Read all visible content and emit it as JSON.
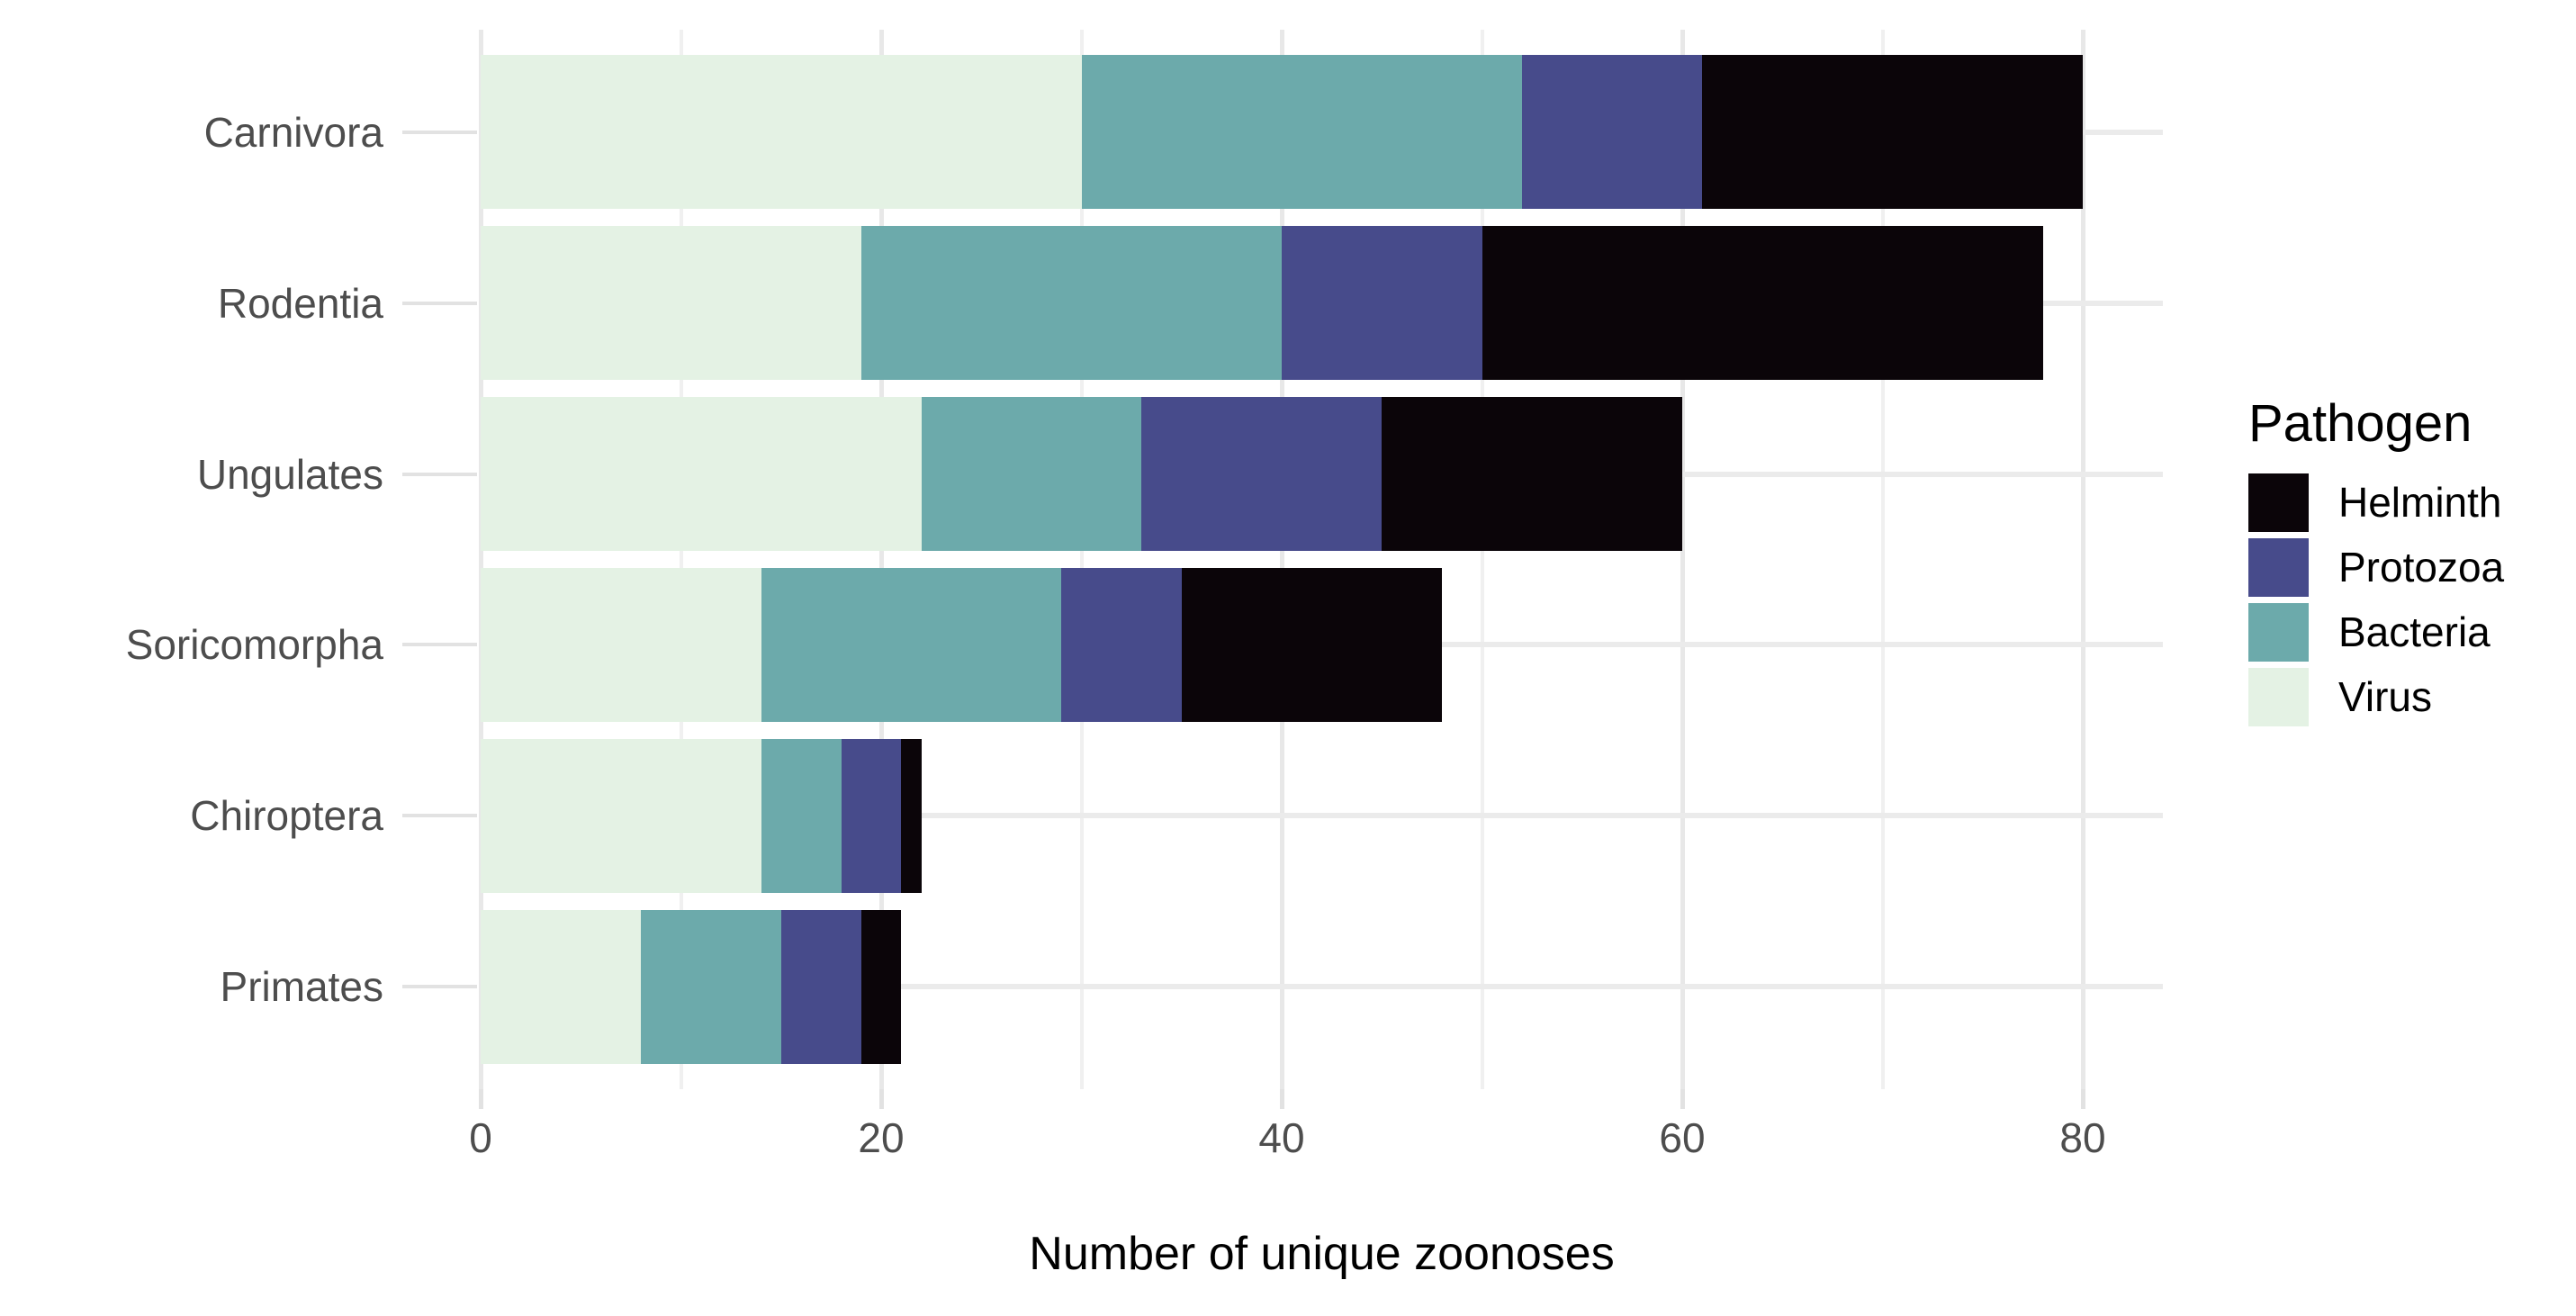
{
  "chart_data": {
    "type": "bar",
    "orientation": "horizontal",
    "stacked": true,
    "title": "",
    "xlabel": "Number of unique zoonoses",
    "ylabel": "",
    "categories": [
      "Carnivora",
      "Rodentia",
      "Ungulates",
      "Soricomorpha",
      "Chiroptera",
      "Primates"
    ],
    "series": [
      {
        "name": "Virus",
        "color": "#e4f2e4",
        "values": [
          30,
          19,
          22,
          14,
          14,
          8
        ]
      },
      {
        "name": "Bacteria",
        "color": "#6caaab",
        "values": [
          22,
          21,
          11,
          15,
          4,
          7
        ]
      },
      {
        "name": "Protozoa",
        "color": "#474b8b",
        "values": [
          9,
          10,
          12,
          6,
          3,
          4
        ]
      },
      {
        "name": "Helminth",
        "color": "#0b0509",
        "values": [
          19,
          28,
          15,
          13,
          1,
          2
        ]
      }
    ],
    "x_ticks": [
      0,
      20,
      40,
      60,
      80
    ],
    "x_minor_ticks": [
      10,
      30,
      50,
      70
    ],
    "xlim": [
      0,
      84
    ],
    "bar_fraction": 0.9,
    "grid": {
      "major_color": "#e8e8e8",
      "minor_color": "#f0f0f0",
      "horizontal_color": "#ebebeb"
    },
    "axis": {
      "tick_mark_color": "#e2e2e2",
      "tick_label_color": "#4d4d4d",
      "title_color": "#000000"
    },
    "legend": {
      "title": "Pathogen",
      "position": "right",
      "entries": [
        "Helminth",
        "Protozoa",
        "Bacteria",
        "Virus"
      ]
    }
  }
}
